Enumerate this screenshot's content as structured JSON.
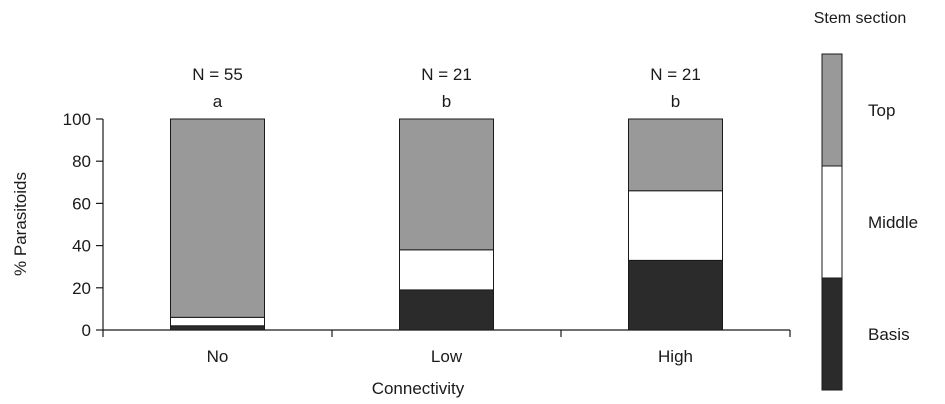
{
  "chart_data": {
    "type": "bar",
    "stacked": true,
    "categories": [
      "No",
      "Low",
      "High"
    ],
    "series": [
      {
        "name": "Basis",
        "color": "#2b2b2b",
        "values": [
          2,
          19,
          33
        ]
      },
      {
        "name": "Middle",
        "color": "#ffffff",
        "values": [
          4,
          19,
          33
        ]
      },
      {
        "name": "Top",
        "color": "#999999",
        "values": [
          94,
          62,
          34
        ]
      }
    ],
    "annotations": {
      "n_labels": [
        "N = 55",
        "N = 21",
        "N = 21"
      ],
      "letters": [
        "a",
        "b",
        "b"
      ]
    },
    "xlabel": "Connectivity",
    "ylabel": "% Parasitoids",
    "ylim": [
      0,
      100
    ],
    "yticks": [
      0,
      20,
      40,
      60,
      80,
      100
    ],
    "legend": {
      "title": "Stem section",
      "position": "right"
    },
    "grid": false
  }
}
